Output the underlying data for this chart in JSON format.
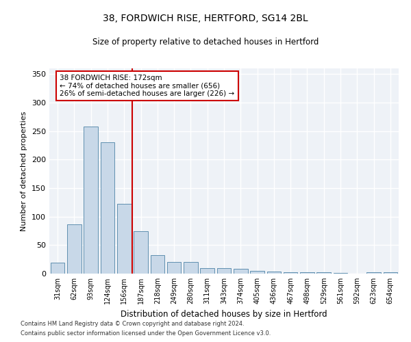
{
  "title1": "38, FORDWICH RISE, HERTFORD, SG14 2BL",
  "title2": "Size of property relative to detached houses in Hertford",
  "xlabel": "Distribution of detached houses by size in Hertford",
  "ylabel": "Number of detached properties",
  "categories": [
    "31sqm",
    "62sqm",
    "93sqm",
    "124sqm",
    "156sqm",
    "187sqm",
    "218sqm",
    "249sqm",
    "280sqm",
    "311sqm",
    "343sqm",
    "374sqm",
    "405sqm",
    "436sqm",
    "467sqm",
    "498sqm",
    "529sqm",
    "561sqm",
    "592sqm",
    "623sqm",
    "654sqm"
  ],
  "values": [
    19,
    87,
    258,
    230,
    122,
    75,
    32,
    20,
    20,
    10,
    10,
    8,
    5,
    4,
    3,
    2,
    2,
    1,
    0,
    2,
    2
  ],
  "bar_color": "#c8d8e8",
  "bar_edge_color": "#6090b0",
  "vline_x": 4.5,
  "vline_color": "#cc0000",
  "annotation_title": "38 FORDWICH RISE: 172sqm",
  "annotation_line1": "← 74% of detached houses are smaller (656)",
  "annotation_line2": "26% of semi-detached houses are larger (226) →",
  "annotation_box_color": "#cc0000",
  "ylim": [
    0,
    360
  ],
  "yticks": [
    0,
    50,
    100,
    150,
    200,
    250,
    300,
    350
  ],
  "footer1": "Contains HM Land Registry data © Crown copyright and database right 2024.",
  "footer2": "Contains public sector information licensed under the Open Government Licence v3.0.",
  "bg_color": "#eef2f7"
}
